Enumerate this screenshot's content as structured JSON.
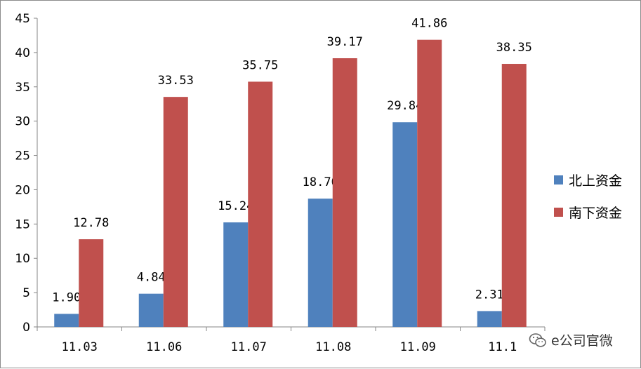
{
  "chart_data": {
    "type": "bar",
    "categories": [
      "11.03",
      "11.06",
      "11.07",
      "11.08",
      "11.09",
      "11.1"
    ],
    "series": [
      {
        "name": "北上资金",
        "color": "#4f81bd",
        "values": [
          1.9,
          4.84,
          15.24,
          18.7,
          29.84,
          2.31
        ],
        "labels": [
          "1.90",
          "4.84",
          "15.24",
          "18.70",
          "29.84",
          "2.31"
        ]
      },
      {
        "name": "南下资金",
        "color": "#c0504d",
        "values": [
          12.78,
          33.53,
          35.75,
          39.17,
          41.86,
          38.35
        ],
        "labels": [
          "12.78",
          "33.53",
          "35.75",
          "39.17",
          "41.86",
          "38.35"
        ]
      }
    ],
    "yticks": [
      "0",
      "5",
      "10",
      "15",
      "20",
      "25",
      "30",
      "35",
      "40",
      "45"
    ],
    "ylim": [
      0,
      45
    ],
    "grid": false,
    "legend_position": "right"
  },
  "watermark": {
    "icon": "wechat-icon",
    "text": "e公司官微"
  }
}
